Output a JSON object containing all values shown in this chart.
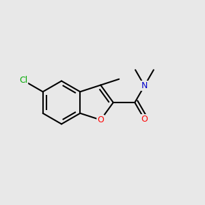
{
  "background_color": "#e8e8e8",
  "atom_colors": {
    "C": "#000000",
    "O": "#ff0000",
    "N": "#0000cc",
    "Cl": "#00aa00"
  },
  "bond_color": "#000000",
  "bond_width": 1.5,
  "figsize": [
    3.0,
    3.0
  ],
  "dpi": 100
}
